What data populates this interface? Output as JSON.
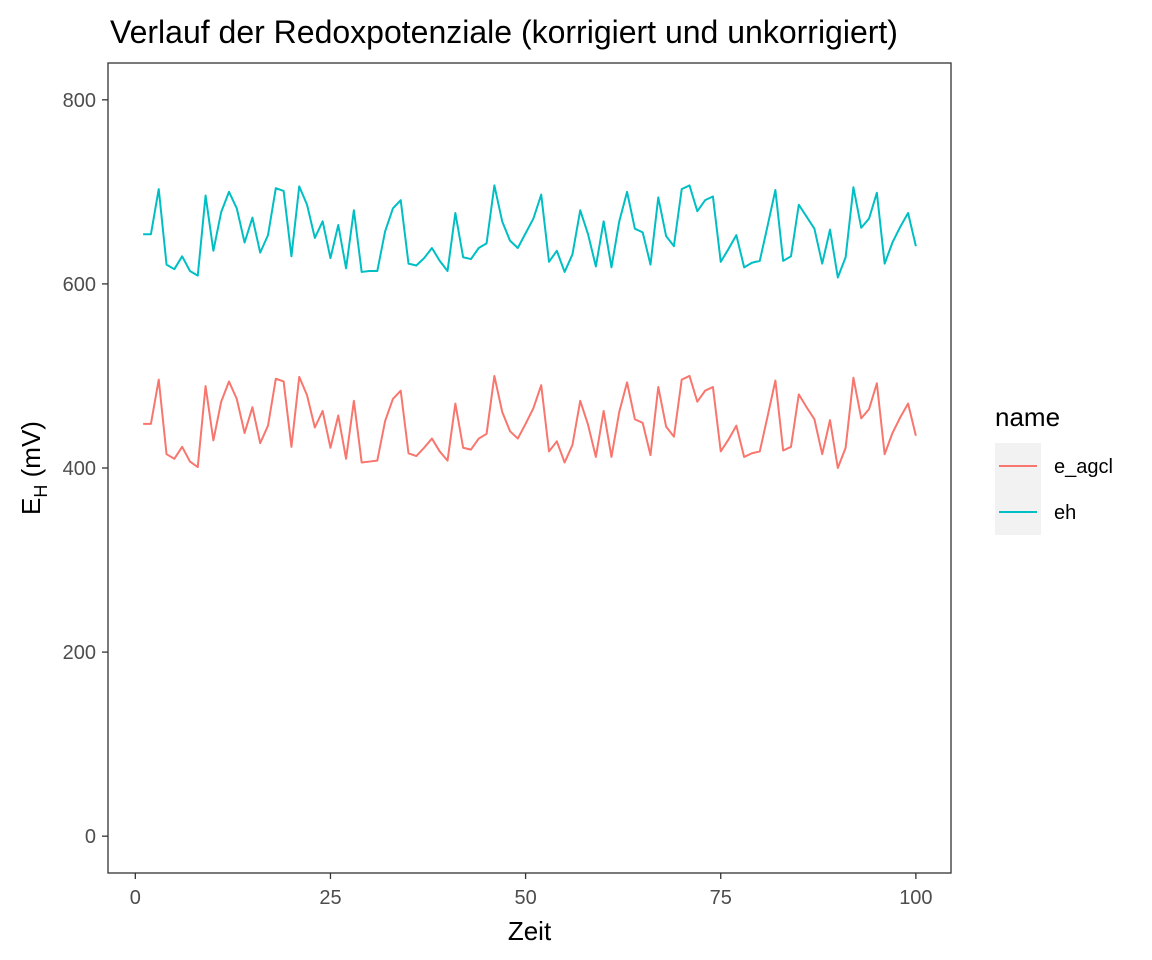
{
  "chart_data": {
    "type": "line",
    "title": "Verlauf der Redoxpotenziale (korrigiert und unkorrigiert)",
    "xlabel": "Zeit",
    "ylabel": "E",
    "ylabel_sub": "H",
    "ylabel_unit": " (mV)",
    "xlim": [
      -3.5,
      104.5
    ],
    "ylim": [
      -40,
      840
    ],
    "x_ticks": [
      0,
      25,
      50,
      75,
      100
    ],
    "x_tick_labels": [
      "0",
      "25",
      "50",
      "75",
      "100"
    ],
    "y_ticks": [
      0,
      200,
      400,
      600,
      800
    ],
    "y_tick_labels": [
      "0",
      "200",
      "400",
      "600",
      "800"
    ],
    "grid": false,
    "legend_position": "right",
    "legend_title": "name",
    "x": [
      1,
      2,
      3,
      4,
      5,
      6,
      7,
      8,
      9,
      10,
      11,
      12,
      13,
      14,
      15,
      16,
      17,
      18,
      19,
      20,
      21,
      22,
      23,
      24,
      25,
      26,
      27,
      28,
      29,
      30,
      31,
      32,
      33,
      34,
      35,
      36,
      37,
      38,
      39,
      40,
      41,
      42,
      43,
      44,
      45,
      46,
      47,
      48,
      49,
      50,
      51,
      52,
      53,
      54,
      55,
      56,
      57,
      58,
      59,
      60,
      61,
      62,
      63,
      64,
      65,
      66,
      67,
      68,
      69,
      70,
      71,
      72,
      73,
      74,
      75,
      76,
      77,
      78,
      79,
      80,
      81,
      82,
      83,
      84,
      85,
      86,
      87,
      88,
      89,
      90,
      91,
      92,
      93,
      94,
      95,
      96,
      97,
      98,
      99,
      100
    ],
    "series": [
      {
        "name": "e_agcl",
        "color": "#F8766D",
        "values": [
          448,
          448,
          496,
          415,
          410,
          423,
          407,
          401,
          489,
          430,
          472,
          494,
          475,
          438,
          466,
          427,
          446,
          497,
          494,
          423,
          499,
          479,
          444,
          462,
          422,
          457,
          410,
          473,
          406,
          407,
          408,
          451,
          475,
          484,
          416,
          413,
          422,
          432,
          418,
          408,
          470,
          422,
          420,
          432,
          437,
          500,
          461,
          440,
          432,
          448,
          465,
          490,
          418,
          429,
          406,
          425,
          473,
          447,
          412,
          462,
          412,
          461,
          493,
          453,
          449,
          414,
          488,
          445,
          434,
          496,
          500,
          472,
          484,
          488,
          418,
          431,
          446,
          412,
          416,
          418,
          456,
          495,
          419,
          423,
          480,
          466,
          453,
          415,
          452,
          400,
          422,
          498,
          454,
          464,
          492,
          415,
          438,
          455,
          470,
          435
        ]
      },
      {
        "name": "eh",
        "color": "#00BFC4",
        "values": [
          654,
          654,
          703,
          621,
          616,
          630,
          614,
          609,
          696,
          636,
          678,
          700,
          682,
          645,
          672,
          634,
          653,
          704,
          701,
          630,
          706,
          686,
          650,
          668,
          628,
          664,
          617,
          680,
          613,
          614,
          614,
          657,
          682,
          691,
          622,
          620,
          628,
          639,
          625,
          614,
          677,
          629,
          627,
          639,
          644,
          707,
          668,
          647,
          639,
          655,
          671,
          697,
          624,
          636,
          613,
          632,
          680,
          654,
          619,
          668,
          618,
          668,
          700,
          660,
          656,
          621,
          694,
          652,
          641,
          703,
          707,
          679,
          691,
          695,
          624,
          638,
          653,
          618,
          623,
          625,
          663,
          702,
          625,
          630,
          686,
          673,
          660,
          622,
          659,
          607,
          629,
          705,
          661,
          671,
          699,
          622,
          645,
          662,
          677,
          641
        ]
      }
    ]
  }
}
